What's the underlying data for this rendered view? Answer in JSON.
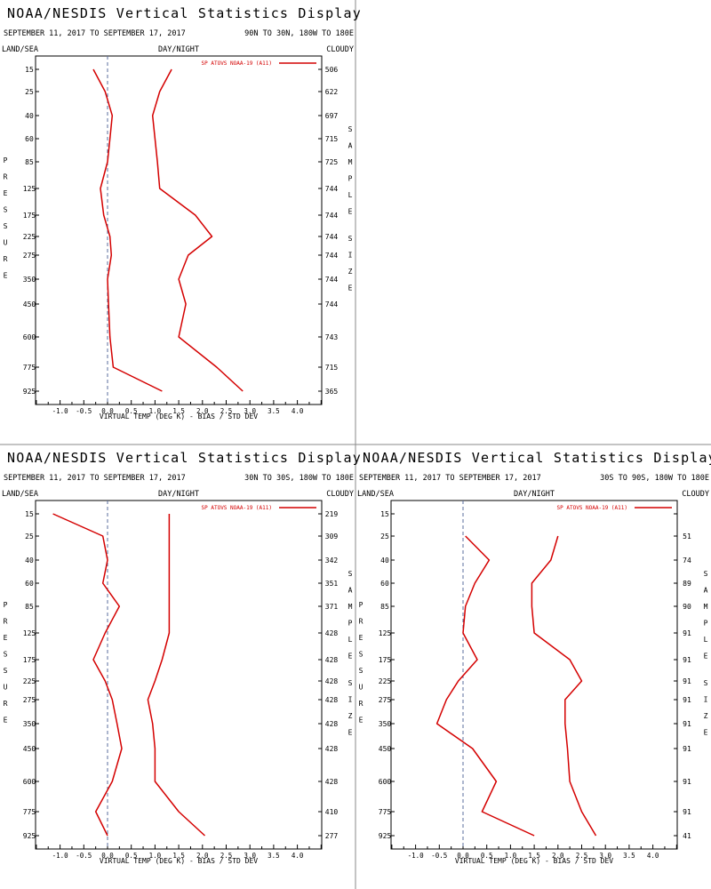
{
  "chart_data": [
    {
      "type": "line",
      "title": "NOAA/NESDIS Vertical Statistics Display",
      "date_range": "SEPTEMBER 11, 2017 TO SEPTEMBER 17, 2017",
      "region": "90N TO 30N, 180W TO 180E",
      "surface": "LAND/SEA",
      "time": "DAY/NIGHT",
      "cloud": "CLOUDY",
      "legend": "SP ATOVS NOAA-19 (A11)",
      "xlabel": "VIRTUAL TEMP (DEG K) - BIAS / STD DEV",
      "ylabel": "PRESSURE",
      "right_label": "SAMPLE SIZE",
      "xlim": [
        -1.5,
        4.5
      ],
      "xticks": [
        "-1.0",
        "-0.5",
        "0.0",
        "0.5",
        "1.0",
        "1.5",
        "2.0",
        "2.5",
        "3.0",
        "3.5",
        "4.0"
      ],
      "pressure_levels": [
        "15",
        "25",
        "40",
        "60",
        "85",
        "125",
        "175",
        "225",
        "275",
        "350",
        "450",
        "600",
        "775",
        "925"
      ],
      "sample_size": [
        "506",
        "622",
        "697",
        "715",
        "725",
        "744",
        "744",
        "744",
        "744",
        "744",
        "744",
        "743",
        "715",
        "365"
      ],
      "bias": [
        -0.3,
        -0.05,
        0.1,
        0.05,
        0.0,
        -0.15,
        -0.08,
        0.05,
        0.08,
        0.0,
        0.02,
        0.05,
        0.12,
        1.15
      ],
      "std_dev": [
        1.35,
        1.1,
        0.95,
        1.0,
        1.05,
        1.1,
        1.85,
        2.2,
        1.7,
        1.5,
        1.65,
        1.5,
        2.3,
        2.85
      ]
    },
    {
      "type": "line",
      "title": "NOAA/NESDIS Vertical Statistics Display",
      "date_range": "SEPTEMBER 11, 2017 TO SEPTEMBER 17, 2017",
      "region": "30N TO 30S, 180W TO 180E",
      "surface": "LAND/SEA",
      "time": "DAY/NIGHT",
      "cloud": "CLOUDY",
      "legend": "SP ATOVS NOAA-19 (A11)",
      "xlabel": "VIRTUAL TEMP (DEG K) - BIAS / STD DEV",
      "ylabel": "PRESSURE",
      "right_label": "SAMPLE SIZE",
      "xlim": [
        -1.5,
        4.5
      ],
      "xticks": [
        "-1.0",
        "-0.5",
        "0.0",
        "0.5",
        "1.0",
        "1.5",
        "2.0",
        "2.5",
        "3.0",
        "3.5",
        "4.0"
      ],
      "pressure_levels": [
        "15",
        "25",
        "40",
        "60",
        "85",
        "125",
        "175",
        "225",
        "275",
        "350",
        "450",
        "600",
        "775",
        "925"
      ],
      "sample_size": [
        "219",
        "309",
        "342",
        "351",
        "371",
        "428",
        "428",
        "428",
        "428",
        "428",
        "428",
        "428",
        "410",
        "277"
      ],
      "bias": [
        -1.15,
        -0.1,
        0.0,
        -0.1,
        0.25,
        -0.05,
        -0.3,
        -0.05,
        0.1,
        0.2,
        0.3,
        0.1,
        -0.25,
        0.0
      ],
      "std_dev": [
        1.3,
        1.3,
        1.3,
        1.3,
        1.3,
        1.3,
        1.15,
        1.0,
        0.85,
        0.95,
        1.0,
        1.0,
        1.5,
        2.05
      ]
    },
    {
      "type": "line",
      "title": "NOAA/NESDIS Vertical Statistics Display",
      "date_range": "SEPTEMBER 11, 2017 TO SEPTEMBER 17, 2017",
      "region": "30S TO 90S, 180W TO 180E",
      "surface": "LAND/SEA",
      "time": "DAY/NIGHT",
      "cloud": "CLOUDY",
      "legend": "SP ATOVS NOAA-19 (A11)",
      "xlabel": "VIRTUAL TEMP (DEG K) - BIAS / STD DEV",
      "ylabel": "PRESSURE",
      "right_label": "SAMPLE SIZE",
      "xlim": [
        -1.5,
        4.5
      ],
      "xticks": [
        "-1.0",
        "-0.5",
        "0.0",
        "0.5",
        "1.0",
        "1.5",
        "2.0",
        "2.5",
        "3.0",
        "3.5",
        "4.0"
      ],
      "pressure_levels": [
        "15",
        "25",
        "40",
        "60",
        "85",
        "125",
        "175",
        "225",
        "275",
        "350",
        "450",
        "600",
        "775",
        "925"
      ],
      "sample_size": [
        "",
        "51",
        "74",
        "89",
        "90",
        "91",
        "91",
        "91",
        "91",
        "91",
        "91",
        "91",
        "91",
        "41"
      ],
      "bias": [
        null,
        0.05,
        0.55,
        0.25,
        0.05,
        0.0,
        0.3,
        -0.1,
        -0.35,
        -0.55,
        0.2,
        0.7,
        0.4,
        1.5
      ],
      "std_dev": [
        null,
        2.0,
        1.85,
        1.45,
        1.45,
        1.5,
        2.25,
        2.5,
        2.15,
        2.15,
        2.2,
        2.25,
        2.5,
        2.8
      ]
    }
  ]
}
